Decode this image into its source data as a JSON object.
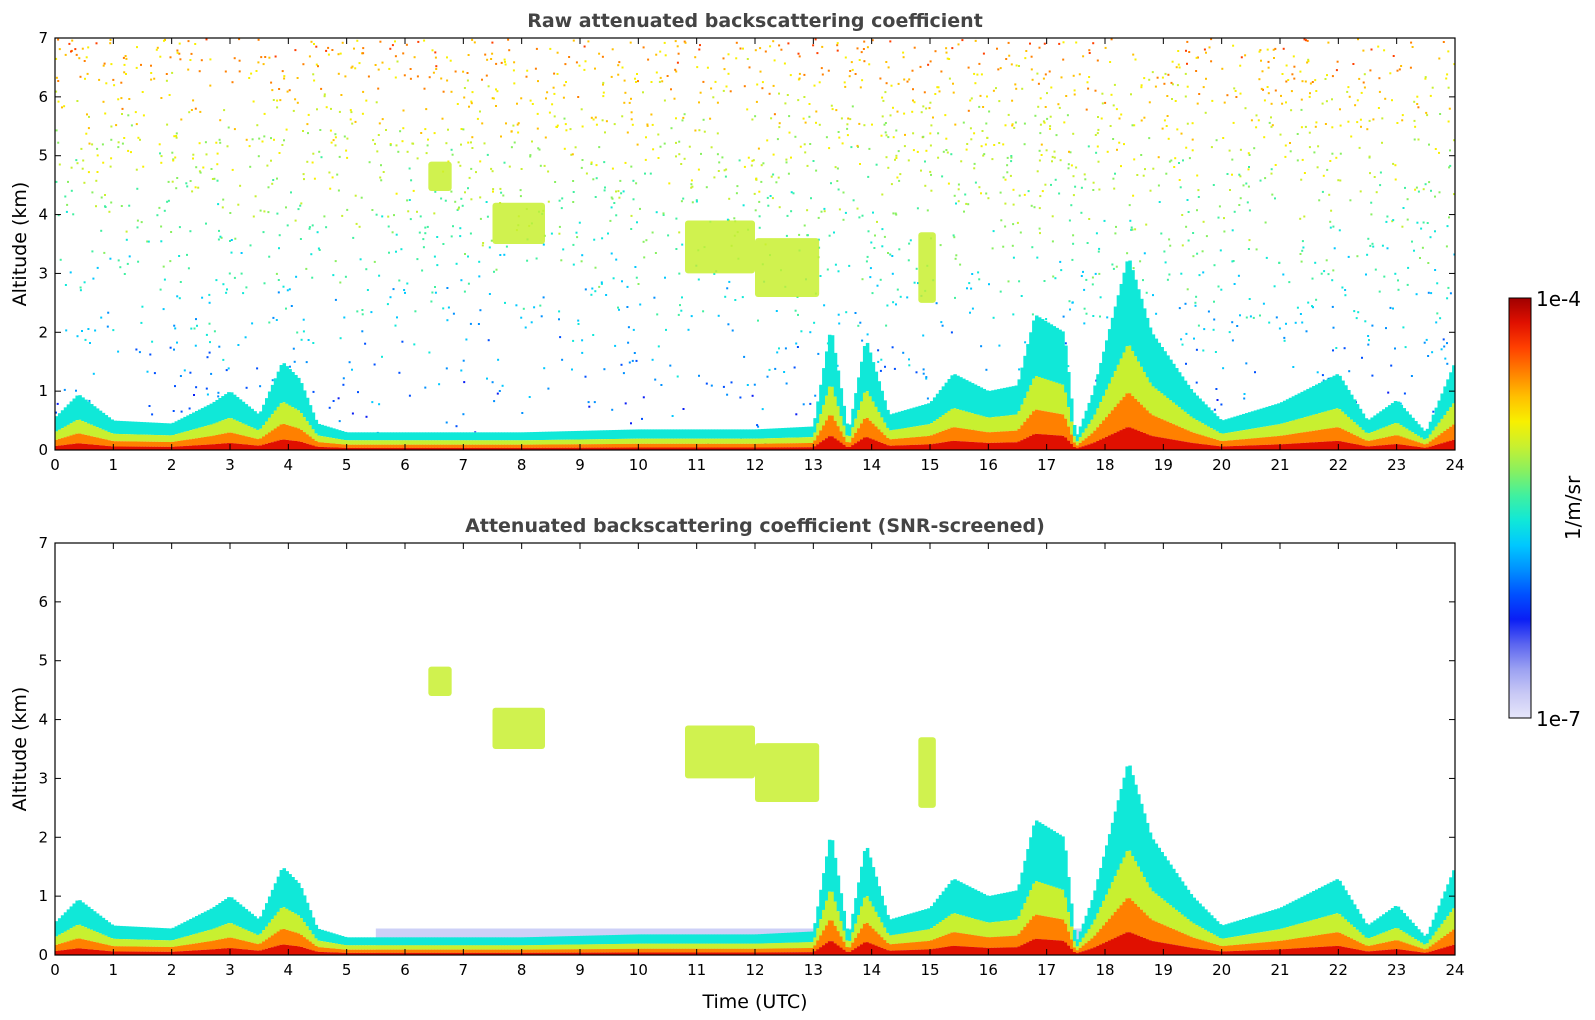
{
  "colorbar": {
    "max_label": "1e-4",
    "min_label": "1e-7",
    "unit_label": "1/m/sr",
    "colors": [
      "#e6e6fa",
      "#c8c8f5",
      "#9aa0f2",
      "#5a64f0",
      "#0a1ef5",
      "#0050ff",
      "#0090ff",
      "#00c8ff",
      "#10e8d8",
      "#40f0a0",
      "#88f060",
      "#c8f030",
      "#f8f000",
      "#ffc000",
      "#ff8000",
      "#ff4000",
      "#e01000",
      "#a00000"
    ]
  },
  "chart_data": [
    {
      "type": "heatmap",
      "title": "Raw attenuated backscattering coefficient",
      "xlabel": "",
      "ylabel": "Altitude (km)",
      "xlim": [
        0,
        24
      ],
      "ylim": [
        0,
        7
      ],
      "x_ticks": [
        "0",
        "1",
        "2",
        "3",
        "4",
        "5",
        "6",
        "7",
        "8",
        "9",
        "10",
        "11",
        "12",
        "13",
        "14",
        "15",
        "16",
        "17",
        "18",
        "19",
        "20",
        "21",
        "22",
        "23",
        "24"
      ],
      "y_ticks": [
        "0",
        "1",
        "2",
        "3",
        "4",
        "5",
        "6",
        "7"
      ],
      "color_scale": "log",
      "value_range": [
        1e-07,
        0.0001
      ],
      "boundary_layer_top_km": [
        [
          0,
          0.55
        ],
        [
          0.4,
          0.95
        ],
        [
          1,
          0.5
        ],
        [
          2,
          0.45
        ],
        [
          2.7,
          0.8
        ],
        [
          3,
          1.0
        ],
        [
          3.5,
          0.6
        ],
        [
          3.9,
          1.5
        ],
        [
          4.2,
          1.2
        ],
        [
          4.5,
          0.45
        ],
        [
          5,
          0.3
        ],
        [
          6,
          0.3
        ],
        [
          8,
          0.3
        ],
        [
          10,
          0.35
        ],
        [
          12,
          0.35
        ],
        [
          13,
          0.4
        ],
        [
          13.3,
          2.1
        ],
        [
          13.6,
          0.3
        ],
        [
          13.9,
          1.9
        ],
        [
          14.3,
          0.6
        ],
        [
          15,
          0.8
        ],
        [
          15.4,
          1.3
        ],
        [
          16,
          1.0
        ],
        [
          16.5,
          1.1
        ],
        [
          16.8,
          2.3
        ],
        [
          17.3,
          2.0
        ],
        [
          17.5,
          0.2
        ],
        [
          17.8,
          1.0
        ],
        [
          18.4,
          3.3
        ],
        [
          18.8,
          2.0
        ],
        [
          19.5,
          1.0
        ],
        [
          20,
          0.5
        ],
        [
          21,
          0.8
        ],
        [
          22,
          1.3
        ],
        [
          22.5,
          0.5
        ],
        [
          23,
          0.85
        ],
        [
          23.5,
          0.3
        ],
        [
          24,
          1.5
        ]
      ],
      "elevated_layers": [
        {
          "time": [
            6.4,
            6.8
          ],
          "altitude_km": [
            4.4,
            4.9
          ],
          "level": "high"
        },
        {
          "time": [
            7.5,
            8.4
          ],
          "altitude_km": [
            3.5,
            4.2
          ],
          "level": "high"
        },
        {
          "time": [
            10.8,
            12.0
          ],
          "altitude_km": [
            3.0,
            3.9
          ],
          "level": "high"
        },
        {
          "time": [
            12.0,
            13.1
          ],
          "altitude_km": [
            2.6,
            3.6
          ],
          "level": "high"
        },
        {
          "time": [
            14.8,
            15.1
          ],
          "altitude_km": [
            2.5,
            3.7
          ],
          "level": "high"
        }
      ]
    },
    {
      "type": "heatmap",
      "title": "Attenuated backscattering coefficient (SNR-screened)",
      "xlabel": "Time (UTC)",
      "ylabel": "Altitude (km)",
      "xlim": [
        0,
        24
      ],
      "ylim": [
        0,
        7
      ],
      "x_ticks": [
        "0",
        "1",
        "2",
        "3",
        "4",
        "5",
        "6",
        "7",
        "8",
        "9",
        "10",
        "11",
        "12",
        "13",
        "14",
        "15",
        "16",
        "17",
        "18",
        "19",
        "20",
        "21",
        "22",
        "23",
        "24"
      ],
      "y_ticks": [
        "0",
        "1",
        "2",
        "3",
        "4",
        "5",
        "6",
        "7"
      ],
      "color_scale": "log",
      "value_range": [
        1e-07,
        0.0001
      ],
      "boundary_layer_top_km": [
        [
          0,
          0.55
        ],
        [
          0.4,
          0.95
        ],
        [
          1,
          0.5
        ],
        [
          2,
          0.45
        ],
        [
          2.7,
          0.8
        ],
        [
          3,
          1.0
        ],
        [
          3.5,
          0.6
        ],
        [
          3.9,
          1.5
        ],
        [
          4.2,
          1.2
        ],
        [
          4.5,
          0.45
        ],
        [
          5,
          0.3
        ],
        [
          6,
          0.3
        ],
        [
          8,
          0.3
        ],
        [
          10,
          0.35
        ],
        [
          12,
          0.35
        ],
        [
          13,
          0.4
        ],
        [
          13.3,
          2.1
        ],
        [
          13.6,
          0.3
        ],
        [
          13.9,
          1.9
        ],
        [
          14.3,
          0.6
        ],
        [
          15,
          0.8
        ],
        [
          15.4,
          1.3
        ],
        [
          16,
          1.0
        ],
        [
          16.5,
          1.1
        ],
        [
          16.8,
          2.3
        ],
        [
          17.3,
          2.0
        ],
        [
          17.5,
          0.2
        ],
        [
          17.8,
          1.0
        ],
        [
          18.4,
          3.3
        ],
        [
          18.8,
          2.0
        ],
        [
          19.5,
          1.0
        ],
        [
          20,
          0.5
        ],
        [
          21,
          0.8
        ],
        [
          22,
          1.3
        ],
        [
          22.5,
          0.5
        ],
        [
          23,
          0.85
        ],
        [
          23.5,
          0.3
        ],
        [
          24,
          1.5
        ]
      ],
      "elevated_layers": [
        {
          "time": [
            6.4,
            6.8
          ],
          "altitude_km": [
            4.4,
            4.9
          ],
          "level": "high"
        },
        {
          "time": [
            7.5,
            8.4
          ],
          "altitude_km": [
            3.5,
            4.2
          ],
          "level": "high"
        },
        {
          "time": [
            10.8,
            12.0
          ],
          "altitude_km": [
            3.0,
            3.9
          ],
          "level": "high"
        },
        {
          "time": [
            12.0,
            13.1
          ],
          "altitude_km": [
            2.6,
            3.6
          ],
          "level": "high"
        },
        {
          "time": [
            14.8,
            15.1
          ],
          "altitude_km": [
            2.5,
            3.7
          ],
          "level": "high"
        }
      ]
    }
  ]
}
